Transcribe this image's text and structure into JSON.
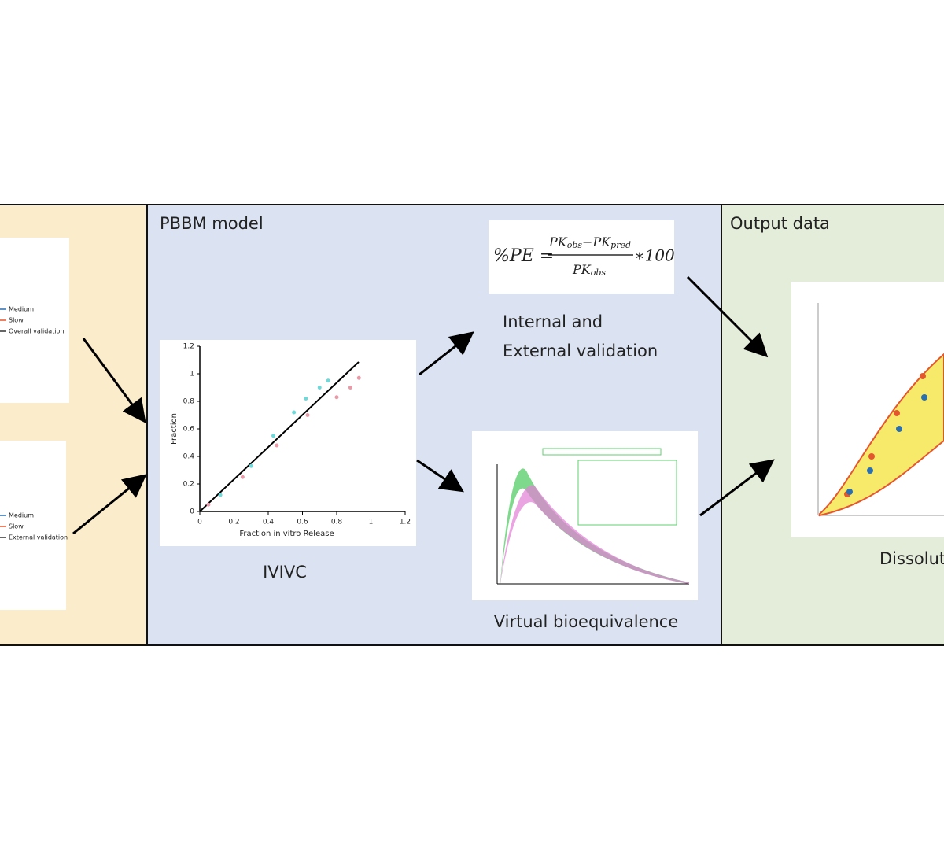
{
  "panels": {
    "middle": {
      "title": "PBBM model"
    },
    "right": {
      "title": "Output data"
    }
  },
  "left_legends": [
    [
      "Medium",
      "Slow",
      "Overall validation"
    ],
    [
      "Medium",
      "Slow",
      "External validation"
    ]
  ],
  "formula": {
    "lhs": "%PE =",
    "num": [
      "PK",
      "obs",
      "−PK",
      "pred"
    ],
    "den": [
      "PK",
      "obs"
    ],
    "rhs": "∗100"
  },
  "labels": {
    "validation": [
      "Internal and",
      "External validation"
    ],
    "ivivc": "IVIVC",
    "vbe": "Virtual bioequivalence",
    "dissolution": "Dissolut"
  },
  "ivivc": {
    "x_label": "Fraction in vitro Release",
    "y_label": "Fraction",
    "xlim": [
      0,
      1.2
    ],
    "ylim": [
      0,
      1.2
    ],
    "xticks": [
      0,
      0.2,
      0.4,
      0.6,
      0.8,
      1,
      1.2
    ],
    "yticks": [
      0,
      0.2,
      0.4,
      0.6,
      0.8,
      1,
      1.2
    ],
    "series": [
      {
        "color": "#6fd8d8",
        "x": [
          0.12,
          0.3,
          0.43,
          0.55,
          0.62,
          0.7,
          0.75
        ],
        "y": [
          0.12,
          0.33,
          0.55,
          0.72,
          0.82,
          0.9,
          0.95
        ]
      },
      {
        "color": "#e89aa8",
        "x": [
          0.05,
          0.25,
          0.45,
          0.63,
          0.8,
          0.88,
          0.93
        ],
        "y": [
          0.05,
          0.25,
          0.48,
          0.7,
          0.83,
          0.9,
          0.97
        ]
      }
    ]
  }
}
